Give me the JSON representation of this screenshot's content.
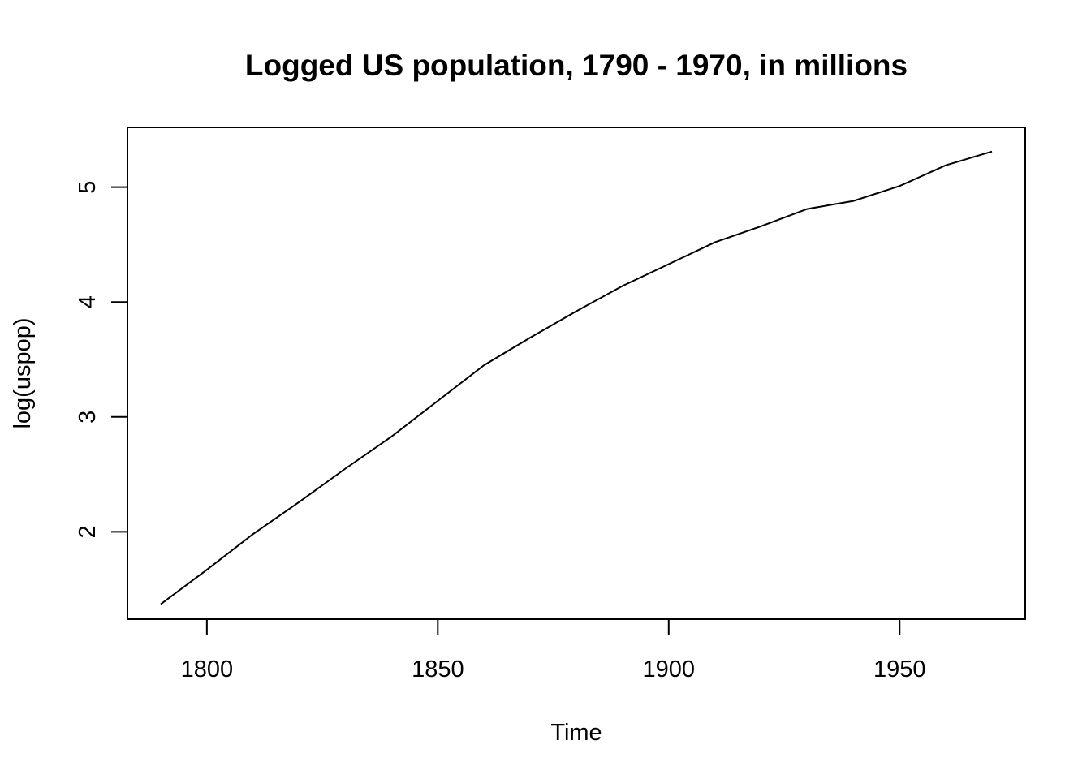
{
  "chart_data": {
    "type": "line",
    "title": "Logged US population, 1790 - 1970, in millions",
    "xlabel": "Time",
    "ylabel": "log(uspop)",
    "xlim": [
      1782.8,
      1977.2
    ],
    "ylim": [
      1.24,
      5.52
    ],
    "grid": false,
    "legend": "none",
    "x_ticks": [
      1800,
      1850,
      1900,
      1950
    ],
    "x_tick_labels": [
      "1800",
      "1850",
      "1900",
      "1950"
    ],
    "y_ticks": [
      2,
      3,
      4,
      5
    ],
    "y_tick_labels": [
      "2",
      "3",
      "4",
      "5"
    ],
    "x": [
      1790,
      1800,
      1810,
      1820,
      1830,
      1840,
      1850,
      1860,
      1870,
      1880,
      1890,
      1900,
      1910,
      1920,
      1930,
      1940,
      1950,
      1960,
      1970
    ],
    "series": [
      {
        "values": [
          1.37,
          1.67,
          1.98,
          2.26,
          2.55,
          2.83,
          3.14,
          3.45,
          3.69,
          3.92,
          4.14,
          4.33,
          4.52,
          4.66,
          4.81,
          4.88,
          5.01,
          5.19,
          5.31
        ],
        "color": "#000000"
      }
    ]
  }
}
